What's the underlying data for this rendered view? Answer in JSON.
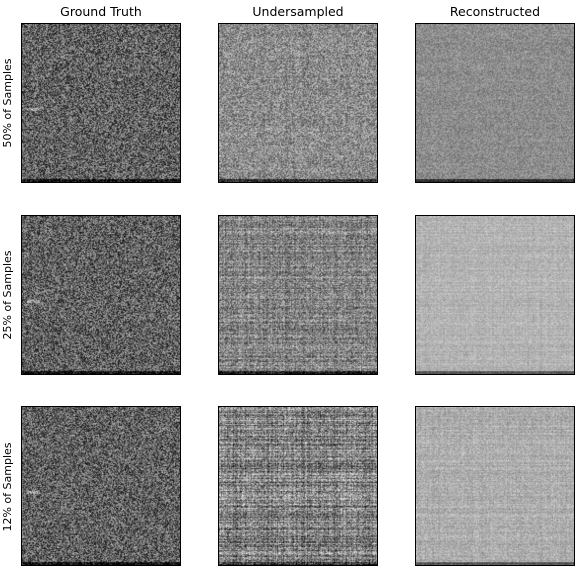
{
  "columns": [
    "Ground Truth",
    "Undersampled",
    "Reconstructed"
  ],
  "rows": [
    "50% of Samples",
    "25% of Samples",
    "12% of Samples"
  ],
  "panels": [
    [
      {
        "tone": "ground-truth",
        "mean": 0.38,
        "contrast": 0.3,
        "stripes": 0.0
      },
      {
        "tone": "undersampled",
        "mean": 0.55,
        "contrast": 0.22,
        "stripes": 0.04
      },
      {
        "tone": "reconstructed",
        "mean": 0.55,
        "contrast": 0.12,
        "stripes": 0.02
      }
    ],
    [
      {
        "tone": "ground-truth",
        "mean": 0.38,
        "contrast": 0.3,
        "stripes": 0.0
      },
      {
        "tone": "undersampled",
        "mean": 0.52,
        "contrast": 0.22,
        "stripes": 0.12
      },
      {
        "tone": "reconstructed",
        "mean": 0.7,
        "contrast": 0.08,
        "stripes": 0.04
      }
    ],
    [
      {
        "tone": "ground-truth",
        "mean": 0.38,
        "contrast": 0.3,
        "stripes": 0.0
      },
      {
        "tone": "undersampled",
        "mean": 0.5,
        "contrast": 0.25,
        "stripes": 0.2
      },
      {
        "tone": "reconstructed",
        "mean": 0.68,
        "contrast": 0.1,
        "stripes": 0.05
      }
    ]
  ]
}
